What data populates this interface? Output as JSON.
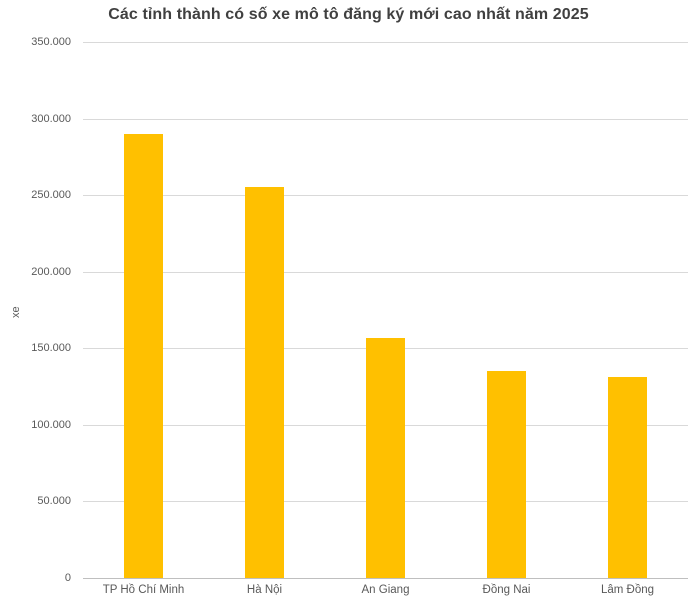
{
  "chart_data": {
    "type": "bar",
    "title": "Các tỉnh thành có số xe mô tô đăng ký mới cao nhất năm 2025",
    "xlabel": "",
    "ylabel": "xe",
    "categories": [
      "TP Hồ Chí Minh",
      "Hà Nội",
      "An Giang",
      "Đồng Nai",
      "Lâm Đồng"
    ],
    "values": [
      290000,
      255000,
      157000,
      135000,
      131000
    ],
    "ylim": [
      0,
      350000
    ],
    "y_ticks": [
      0,
      50000,
      100000,
      150000,
      200000,
      250000,
      300000,
      350000
    ],
    "y_tick_labels": [
      "0",
      "50.000",
      "100.000",
      "150.000",
      "200.000",
      "250.000",
      "300.000",
      "350.000"
    ],
    "grid": true,
    "legend": false,
    "bar_color": "#FFC000",
    "gridline_color": "#D9D9D9",
    "axis_line_color": "#BFBFBF",
    "title_color": "#404040",
    "tick_label_color": "#595959"
  }
}
